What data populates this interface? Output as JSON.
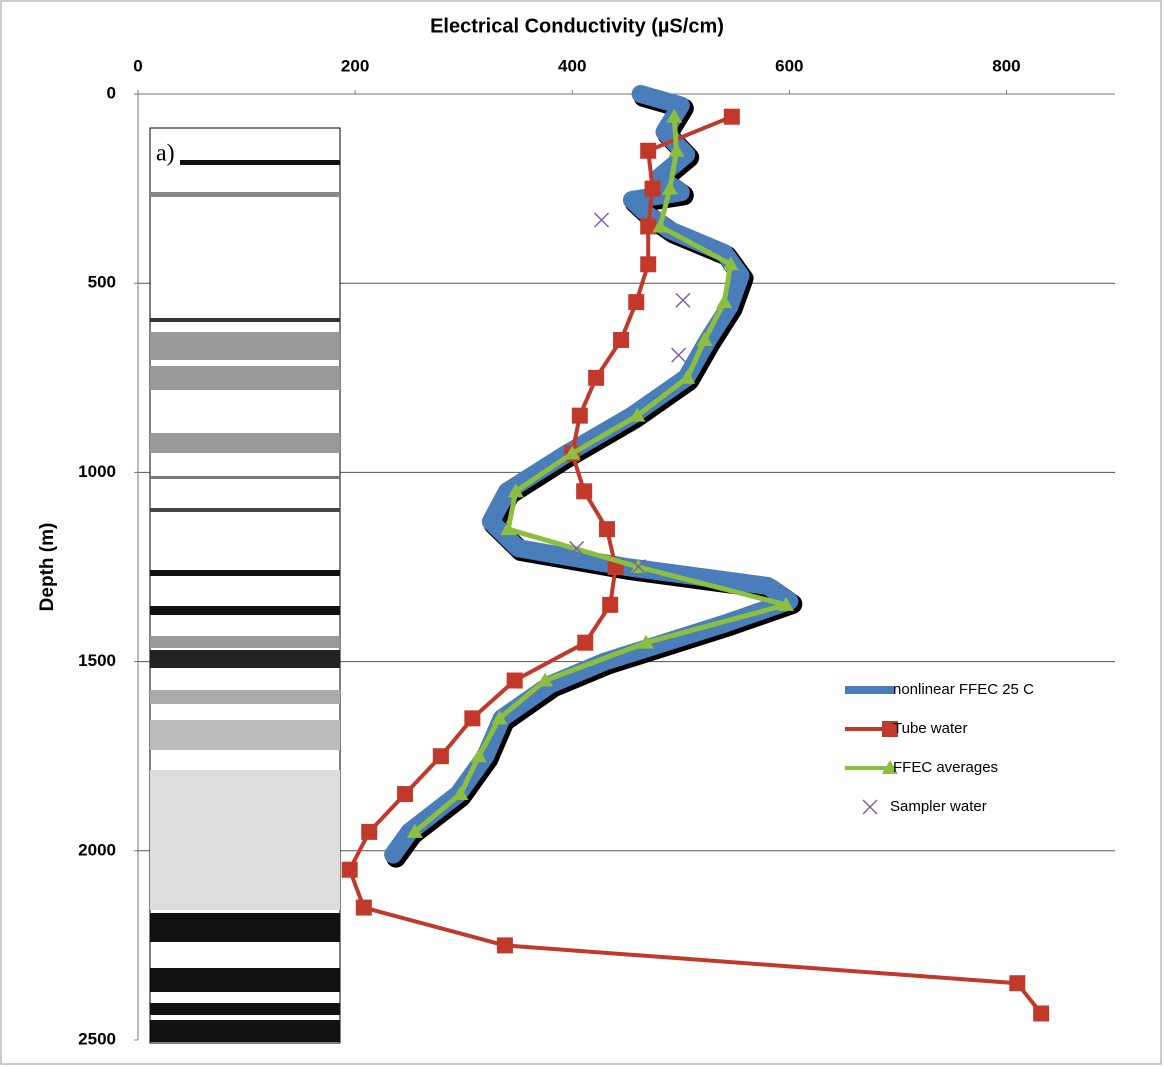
{
  "chart_data": {
    "type": "line",
    "title": "Electrical Conductivity (µS/cm)",
    "y_label": "Depth (m)",
    "panel_label": "a)",
    "xlim": [
      0,
      900
    ],
    "xticks": [
      0,
      200,
      400,
      600,
      800
    ],
    "ylim": [
      0,
      2500
    ],
    "yticks": [
      0,
      500,
      1000,
      1500,
      2000,
      2500
    ],
    "y_reversed": true,
    "grid": true,
    "legend_position": "right",
    "series": [
      {
        "name": "nonlinear FFEC 25 C",
        "color": "#4a7ebb",
        "style": "thick",
        "depth": [
          0,
          30,
          100,
          160,
          220,
          260,
          280,
          320,
          360,
          420,
          480,
          560,
          650,
          750,
          850,
          950,
          1050,
          1130,
          1200,
          1250,
          1300,
          1340,
          1400,
          1500,
          1560,
          1650,
          1750,
          1850,
          1950,
          2010
        ],
        "values": [
          463,
          500,
          485,
          505,
          480,
          500,
          455,
          470,
          490,
          540,
          555,
          545,
          525,
          505,
          455,
          395,
          340,
          325,
          350,
          450,
          580,
          600,
          540,
          430,
          380,
          335,
          320,
          295,
          250,
          235
        ]
      },
      {
        "name": "Tube water",
        "color": "#c0392b",
        "style": "square",
        "depth": [
          60,
          150,
          250,
          350,
          450,
          550,
          650,
          750,
          850,
          950,
          1050,
          1150,
          1250,
          1350,
          1450,
          1550,
          1650,
          1750,
          1850,
          1950,
          2050,
          2150,
          2250,
          2350,
          2430
        ],
        "values": [
          547,
          470,
          474,
          470,
          470,
          459,
          445,
          422,
          407,
          400,
          411,
          432,
          440,
          435,
          412,
          347,
          308,
          279,
          246,
          213,
          195,
          208,
          338,
          810,
          832
        ]
      },
      {
        "name": "FFEC averages",
        "color": "#8cbf3f",
        "style": "triangle",
        "depth": [
          60,
          150,
          250,
          350,
          450,
          550,
          650,
          750,
          850,
          950,
          1050,
          1150,
          1250,
          1350,
          1450,
          1550,
          1650,
          1750,
          1850,
          1950
        ],
        "values": [
          494,
          496,
          490,
          481,
          546,
          540,
          522,
          506,
          460,
          400,
          348,
          341,
          461,
          597,
          468,
          375,
          333,
          314,
          297,
          255
        ]
      },
      {
        "name": "Sampler water",
        "color": "#7f5fa8",
        "style": "cross",
        "depth": [
          333,
          545,
          690,
          1201,
          1249
        ],
        "values": [
          427,
          502,
          498,
          404,
          461
        ]
      }
    ]
  }
}
